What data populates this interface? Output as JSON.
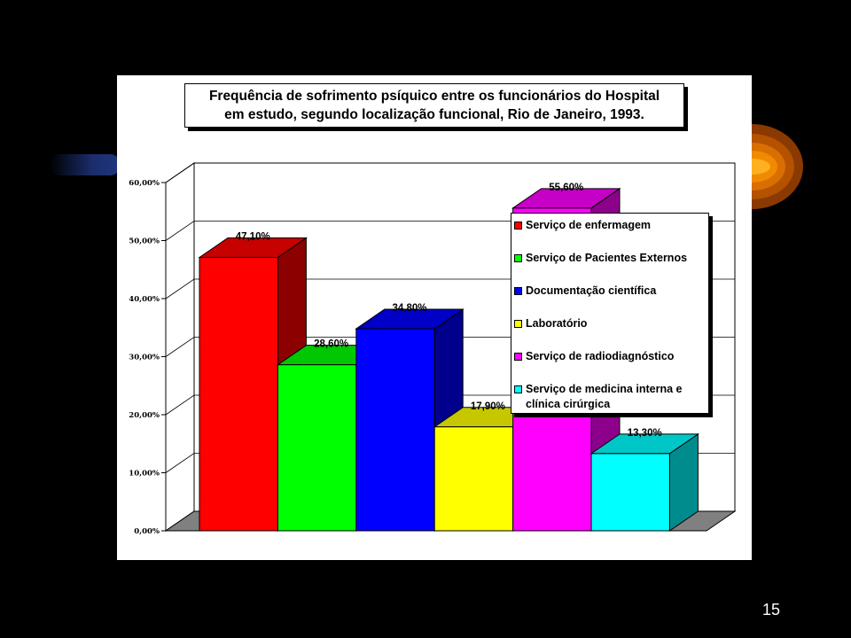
{
  "slide": {
    "page_number": "15"
  },
  "chart_data": {
    "type": "bar",
    "title_lines": [
      "Frequência de sofrimento psíquico entre os funcionários do Hospital",
      "em estudo, segundo localização funcional, Rio de Janeiro, 1993."
    ],
    "categories": [
      "Serviço de enfermagem",
      "Serviço de Pacientes Externos",
      "Documentação científica",
      "Laboratório",
      "Serviço de radiodiagnóstico",
      "Serviço de medicina interna e clínica cirúrgica"
    ],
    "values": [
      47.1,
      28.6,
      34.8,
      17.9,
      55.6,
      13.3
    ],
    "data_labels": [
      "47,10%",
      "28,60%",
      "34,80%",
      "17,90%",
      "55,60%",
      "13,30%"
    ],
    "colors": [
      "#ff0000",
      "#00ff00",
      "#0000ff",
      "#ffff00",
      "#ff00ff",
      "#00ffff"
    ],
    "yticks": [
      "0,00%",
      "10,00%",
      "20,00%",
      "30,00%",
      "40,00%",
      "50,00%",
      "60,00%"
    ],
    "ylim": [
      0,
      60
    ],
    "grid": true,
    "legend_position": "right",
    "style": "3d-column"
  }
}
